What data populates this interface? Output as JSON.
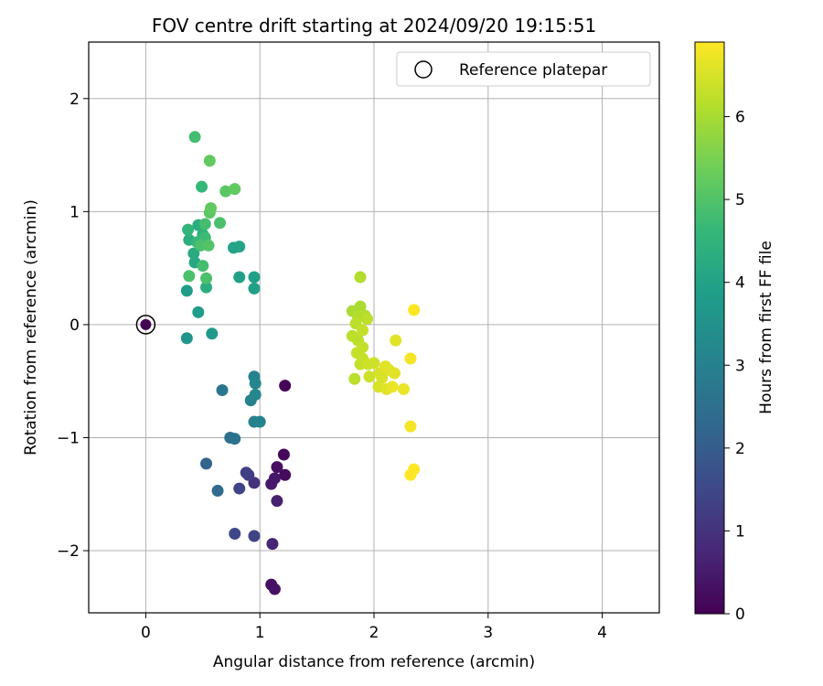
{
  "chart_data": {
    "type": "scatter",
    "title": "FOV centre drift starting at 2024/09/20 19:15:51",
    "xlabel": "Angular distance from reference (arcmin)",
    "ylabel": "Rotation from reference (arcmin)",
    "xlim": [
      -0.5,
      4.5
    ],
    "ylim": [
      -2.55,
      2.5
    ],
    "xticks": [
      0,
      1,
      2,
      3,
      4
    ],
    "xtick_labels": [
      "0",
      "1",
      "2",
      "3",
      "4"
    ],
    "yticks": [
      -2,
      -1,
      0,
      1,
      2
    ],
    "ytick_labels": [
      "−2",
      "−1",
      "0",
      "1",
      "2"
    ],
    "grid": true,
    "legend_position": "top-right",
    "legend_entries": [
      "Reference platepar"
    ],
    "reference_point": {
      "x": 0,
      "y": 0,
      "hours": 0
    },
    "colorbar": {
      "label": "Hours from first FF file",
      "range": [
        0,
        6.9
      ],
      "ticks": [
        0,
        1,
        2,
        3,
        4,
        5,
        6
      ],
      "tick_labels": [
        "0",
        "1",
        "2",
        "3",
        "4",
        "5",
        "6"
      ],
      "colormap": "viridis"
    },
    "points": [
      {
        "x": 1.1,
        "y": -2.3,
        "hours": 0.3
      },
      {
        "x": 1.13,
        "y": -2.34,
        "hours": 0.35
      },
      {
        "x": 1.21,
        "y": -1.15,
        "hours": 0.15
      },
      {
        "x": 1.22,
        "y": -1.33,
        "hours": 0.2
      },
      {
        "x": 1.15,
        "y": -1.26,
        "hours": 0.3
      },
      {
        "x": 1.1,
        "y": -1.41,
        "hours": 0.5
      },
      {
        "x": 1.13,
        "y": -1.36,
        "hours": 0.45
      },
      {
        "x": 1.15,
        "y": -1.56,
        "hours": 0.6
      },
      {
        "x": 1.11,
        "y": -1.94,
        "hours": 0.7
      },
      {
        "x": 1.22,
        "y": -0.54,
        "hours": 0.1
      },
      {
        "x": 0.95,
        "y": -1.4,
        "hours": 1.0
      },
      {
        "x": 0.9,
        "y": -1.33,
        "hours": 1.2
      },
      {
        "x": 0.88,
        "y": -1.31,
        "hours": 1.3
      },
      {
        "x": 0.82,
        "y": -1.45,
        "hours": 1.4
      },
      {
        "x": 0.78,
        "y": -1.85,
        "hours": 1.5
      },
      {
        "x": 0.95,
        "y": -1.87,
        "hours": 1.4
      },
      {
        "x": 0.53,
        "y": -1.23,
        "hours": 2.2
      },
      {
        "x": 0.63,
        "y": -1.47,
        "hours": 2.4
      },
      {
        "x": 0.74,
        "y": -1.0,
        "hours": 2.5
      },
      {
        "x": 0.78,
        "y": -1.01,
        "hours": 2.6
      },
      {
        "x": 0.67,
        "y": -0.58,
        "hours": 2.7
      },
      {
        "x": 0.92,
        "y": -0.67,
        "hours": 3.0
      },
      {
        "x": 0.95,
        "y": -0.46,
        "hours": 3.1
      },
      {
        "x": 0.96,
        "y": -0.52,
        "hours": 3.2
      },
      {
        "x": 0.96,
        "y": -0.62,
        "hours": 3.2
      },
      {
        "x": 0.95,
        "y": -0.86,
        "hours": 3.0
      },
      {
        "x": 1.0,
        "y": -0.86,
        "hours": 3.1
      },
      {
        "x": 0.36,
        "y": -0.12,
        "hours": 3.6
      },
      {
        "x": 0.58,
        "y": -0.08,
        "hours": 3.7
      },
      {
        "x": 0.36,
        "y": 0.3,
        "hours": 3.8
      },
      {
        "x": 0.46,
        "y": 0.11,
        "hours": 3.8
      },
      {
        "x": 0.82,
        "y": 0.42,
        "hours": 3.9
      },
      {
        "x": 0.95,
        "y": 0.42,
        "hours": 3.9
      },
      {
        "x": 0.95,
        "y": 0.32,
        "hours": 3.9
      },
      {
        "x": 0.53,
        "y": 0.33,
        "hours": 4.3
      },
      {
        "x": 0.77,
        "y": 0.68,
        "hours": 4.0
      },
      {
        "x": 0.82,
        "y": 0.69,
        "hours": 4.0
      },
      {
        "x": 0.43,
        "y": 0.55,
        "hours": 4.1
      },
      {
        "x": 0.42,
        "y": 0.63,
        "hours": 4.2
      },
      {
        "x": 0.38,
        "y": 0.75,
        "hours": 4.3
      },
      {
        "x": 0.46,
        "y": 0.88,
        "hours": 4.3
      },
      {
        "x": 0.5,
        "y": 0.8,
        "hours": 4.4
      },
      {
        "x": 0.37,
        "y": 0.84,
        "hours": 4.5
      },
      {
        "x": 0.45,
        "y": 0.73,
        "hours": 4.6
      },
      {
        "x": 0.52,
        "y": 0.77,
        "hours": 4.7
      },
      {
        "x": 0.5,
        "y": 0.52,
        "hours": 4.8
      },
      {
        "x": 0.53,
        "y": 0.41,
        "hours": 4.9
      },
      {
        "x": 0.38,
        "y": 0.43,
        "hours": 4.9
      },
      {
        "x": 0.48,
        "y": 0.7,
        "hours": 4.9
      },
      {
        "x": 0.55,
        "y": 0.7,
        "hours": 5.0
      },
      {
        "x": 0.52,
        "y": 0.89,
        "hours": 4.8
      },
      {
        "x": 0.65,
        "y": 0.9,
        "hours": 4.9
      },
      {
        "x": 0.56,
        "y": 0.99,
        "hours": 5.1
      },
      {
        "x": 0.57,
        "y": 1.03,
        "hours": 5.2
      },
      {
        "x": 0.49,
        "y": 1.22,
        "hours": 4.6
      },
      {
        "x": 0.43,
        "y": 1.66,
        "hours": 4.8
      },
      {
        "x": 0.56,
        "y": 1.45,
        "hours": 5.2
      },
      {
        "x": 0.7,
        "y": 1.18,
        "hours": 5.1
      },
      {
        "x": 0.78,
        "y": 1.2,
        "hours": 5.2
      },
      {
        "x": 1.88,
        "y": 0.42,
        "hours": 6.1
      },
      {
        "x": 1.88,
        "y": 0.16,
        "hours": 6.0
      },
      {
        "x": 1.81,
        "y": 0.12,
        "hours": 6.0
      },
      {
        "x": 1.86,
        "y": 0.07,
        "hours": 6.1
      },
      {
        "x": 1.92,
        "y": 0.08,
        "hours": 6.1
      },
      {
        "x": 1.94,
        "y": 0.05,
        "hours": 6.2
      },
      {
        "x": 1.84,
        "y": 0.01,
        "hours": 6.2
      },
      {
        "x": 1.9,
        "y": -0.05,
        "hours": 6.3
      },
      {
        "x": 1.81,
        "y": -0.1,
        "hours": 6.2
      },
      {
        "x": 1.86,
        "y": -0.14,
        "hours": 6.2
      },
      {
        "x": 1.9,
        "y": -0.2,
        "hours": 6.3
      },
      {
        "x": 1.85,
        "y": -0.25,
        "hours": 6.3
      },
      {
        "x": 1.9,
        "y": -0.3,
        "hours": 6.3
      },
      {
        "x": 1.88,
        "y": -0.35,
        "hours": 6.3
      },
      {
        "x": 1.95,
        "y": -0.35,
        "hours": 6.4
      },
      {
        "x": 2.0,
        "y": -0.34,
        "hours": 6.4
      },
      {
        "x": 1.83,
        "y": -0.48,
        "hours": 6.2
      },
      {
        "x": 1.96,
        "y": -0.46,
        "hours": 6.4
      },
      {
        "x": 2.05,
        "y": -0.43,
        "hours": 6.5
      },
      {
        "x": 2.07,
        "y": -0.47,
        "hours": 6.5
      },
      {
        "x": 2.1,
        "y": -0.37,
        "hours": 6.6
      },
      {
        "x": 2.13,
        "y": -0.4,
        "hours": 6.6
      },
      {
        "x": 2.18,
        "y": -0.43,
        "hours": 6.6
      },
      {
        "x": 2.04,
        "y": -0.55,
        "hours": 6.5
      },
      {
        "x": 2.11,
        "y": -0.57,
        "hours": 6.6
      },
      {
        "x": 2.16,
        "y": -0.55,
        "hours": 6.7
      },
      {
        "x": 2.26,
        "y": -0.57,
        "hours": 6.7
      },
      {
        "x": 2.19,
        "y": -0.14,
        "hours": 6.6
      },
      {
        "x": 2.32,
        "y": -0.3,
        "hours": 6.8
      },
      {
        "x": 2.35,
        "y": 0.13,
        "hours": 6.9
      },
      {
        "x": 2.32,
        "y": -0.9,
        "hours": 6.8
      },
      {
        "x": 2.32,
        "y": -1.33,
        "hours": 6.9
      },
      {
        "x": 2.35,
        "y": -1.28,
        "hours": 6.9
      }
    ]
  }
}
